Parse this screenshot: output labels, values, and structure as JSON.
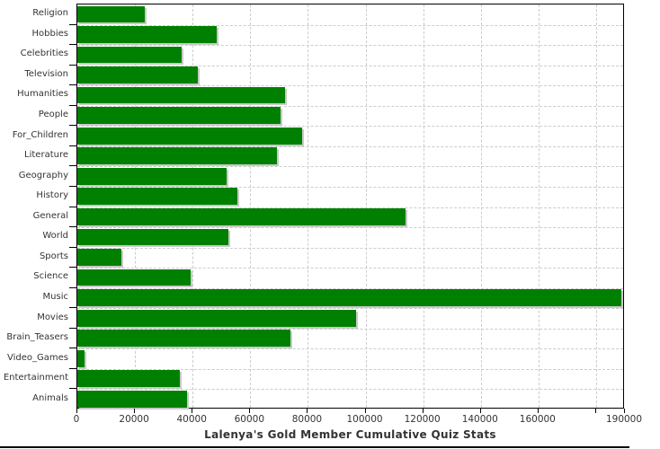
{
  "chart_data": {
    "type": "bar",
    "orientation": "horizontal",
    "title": "Lalenya's Gold Member Cumulative Quiz Stats",
    "categories": [
      "Religion",
      "Hobbies",
      "Celebrities",
      "Television",
      "Humanities",
      "People",
      "For_Children",
      "Literature",
      "Geography",
      "History",
      "General",
      "World",
      "Sports",
      "Science",
      "Music",
      "Movies",
      "Brain_Teasers",
      "Video_Games",
      "Entertainment",
      "Animals"
    ],
    "values": [
      23400,
      48300,
      36100,
      41700,
      72200,
      70500,
      78000,
      69400,
      51900,
      55600,
      113900,
      52400,
      15200,
      39200,
      188900,
      96700,
      73900,
      2400,
      35500,
      38000
    ],
    "xlim": [
      0,
      190000
    ],
    "x_ticks_labeled": [
      0,
      20000,
      40000,
      60000,
      80000,
      100000,
      120000,
      140000,
      160000
    ],
    "x_ticks_unlabeled": [
      180000
    ],
    "x_edge_tick": {
      "value": 190000,
      "label": "190000"
    },
    "grid": true,
    "legend": false,
    "colors": {
      "bar": "#008000",
      "bar_shadow": "#c9c9c9",
      "grid": "#cccccc",
      "axis": "#000000",
      "text": "#333333"
    }
  }
}
